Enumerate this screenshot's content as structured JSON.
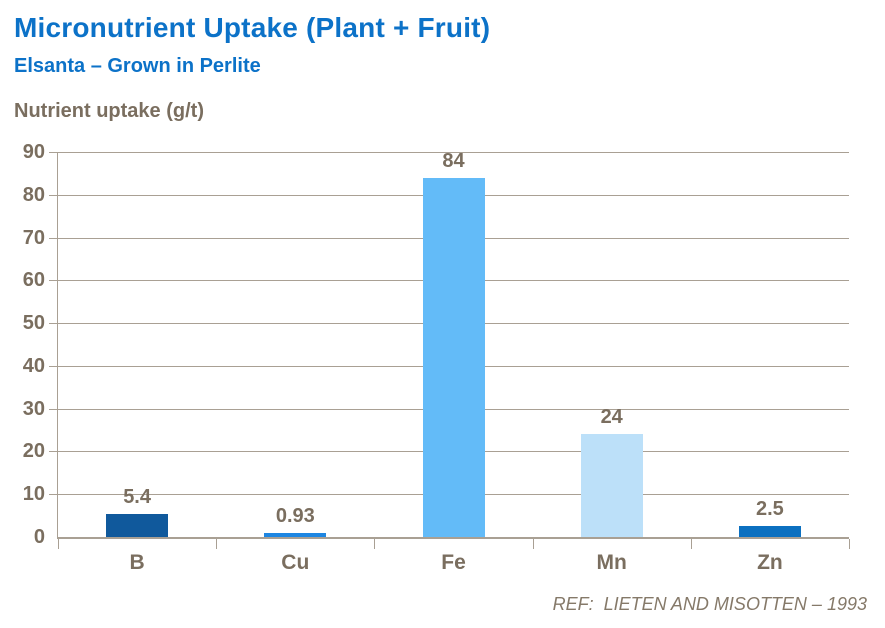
{
  "chart_data": {
    "type": "bar",
    "title": "Micronutrient Uptake (Plant + Fruit)",
    "subtitle": "Elsanta – Grown in Perlite",
    "ylabel": "Nutrient uptake (g/t)",
    "xlabel": "",
    "categories": [
      "B",
      "Cu",
      "Fe",
      "Mn",
      "Zn"
    ],
    "values": [
      5.4,
      0.93,
      84,
      24,
      2.5
    ],
    "value_labels": [
      "5.4",
      "0.93",
      "84",
      "24",
      "2.5"
    ],
    "bar_colors": [
      "#10599C",
      "#1D86E2",
      "#63BBF8",
      "#BCE0F9",
      "#0C70C0"
    ],
    "ylim": [
      0,
      90
    ],
    "ytick_step": 10,
    "yticks": [
      0,
      10,
      20,
      30,
      40,
      50,
      60,
      70,
      80,
      90
    ],
    "grid": true,
    "legend_position": "none"
  },
  "footer": {
    "reference": "REF:  LIETEN AND MISOTTEN – 1993"
  },
  "colors": {
    "title_blue": "#0C72C8",
    "axis_text": "#7A6E5F",
    "gridline": "#A9A094",
    "footer_text": "#857969"
  }
}
